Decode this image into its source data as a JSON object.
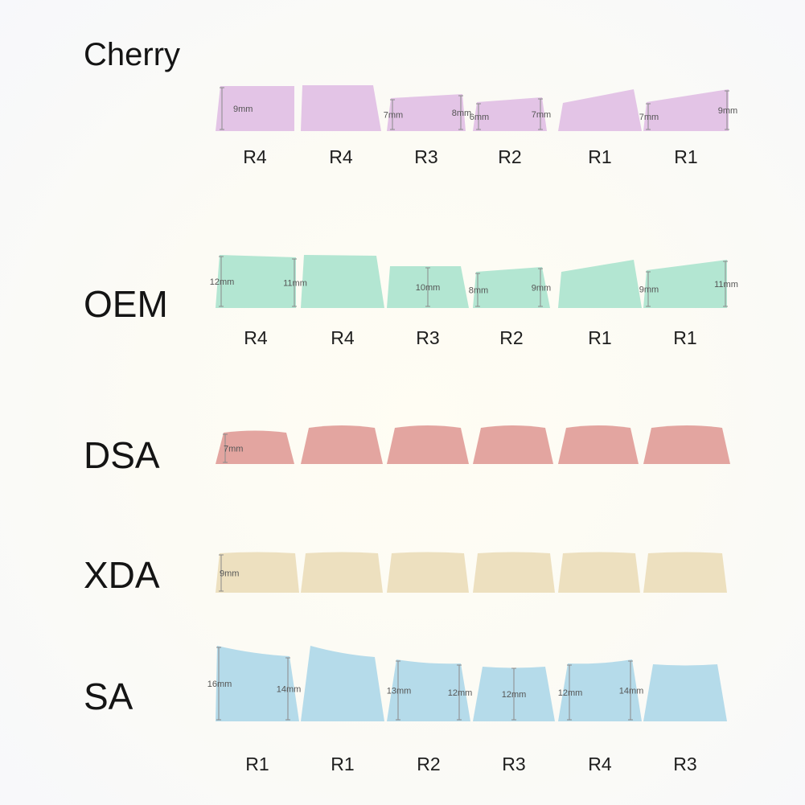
{
  "profiles": [
    {
      "name": "Cherry",
      "color": "#e3c4e6",
      "rows": [
        "R4",
        "R4",
        "R3",
        "R2",
        "R1",
        "R1"
      ],
      "measurements": [
        {
          "key": 1,
          "side": "left",
          "text": "9mm"
        },
        {
          "key": 3,
          "side": "left",
          "text": "7mm"
        },
        {
          "key": 3,
          "side": "right",
          "text": "8mm"
        },
        {
          "key": 4,
          "side": "left",
          "text": "6mm"
        },
        {
          "key": 4,
          "side": "right",
          "text": "7mm"
        },
        {
          "key": 6,
          "side": "left",
          "text": "7mm"
        },
        {
          "key": 6,
          "side": "right",
          "text": "9mm"
        }
      ]
    },
    {
      "name": "OEM",
      "color": "#b3e6d2",
      "rows": [
        "R4",
        "R4",
        "R3",
        "R2",
        "R1",
        "R1"
      ],
      "measurements": [
        {
          "key": 1,
          "side": "left",
          "text": "12mm"
        },
        {
          "key": 1,
          "side": "right",
          "text": "11mm"
        },
        {
          "key": 3,
          "side": "center",
          "text": "10mm"
        },
        {
          "key": 4,
          "side": "left",
          "text": "8mm"
        },
        {
          "key": 4,
          "side": "right",
          "text": "9mm"
        },
        {
          "key": 6,
          "side": "left",
          "text": "9mm"
        },
        {
          "key": 6,
          "side": "right",
          "text": "11mm"
        }
      ]
    },
    {
      "name": "DSA",
      "color": "#e3a5a0",
      "rows": [],
      "measurements": [
        {
          "key": 1,
          "side": "left",
          "text": "7mm"
        }
      ]
    },
    {
      "name": "XDA",
      "color": "#ede0bf",
      "rows": [],
      "measurements": [
        {
          "key": 1,
          "side": "left",
          "text": "9mm"
        }
      ]
    },
    {
      "name": "SA",
      "color": "#b5dbea",
      "rows": [
        "R1",
        "R1",
        "R2",
        "R3",
        "R4",
        "R3"
      ],
      "measurements": [
        {
          "key": 1,
          "side": "left",
          "text": "16mm"
        },
        {
          "key": 1,
          "side": "right",
          "text": "14mm"
        },
        {
          "key": 3,
          "side": "left",
          "text": "13mm"
        },
        {
          "key": 3,
          "side": "right",
          "text": "12mm"
        },
        {
          "key": 4,
          "side": "center",
          "text": "12mm"
        },
        {
          "key": 5,
          "side": "left",
          "text": "12mm"
        },
        {
          "key": 5,
          "side": "right",
          "text": "14mm"
        }
      ]
    }
  ]
}
